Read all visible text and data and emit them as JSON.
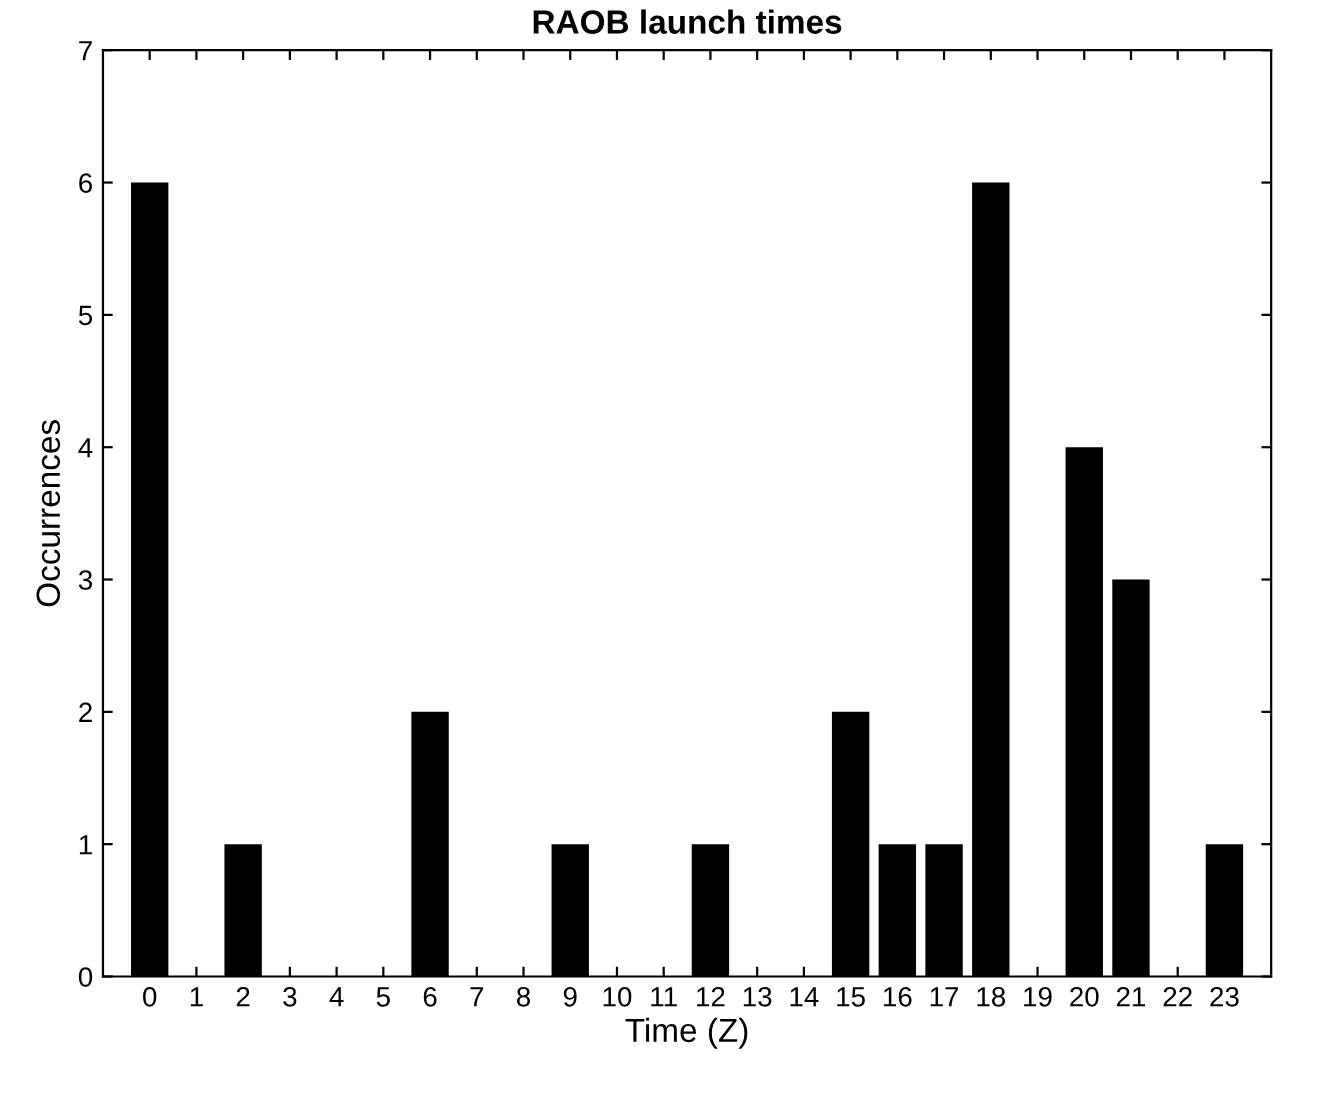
{
  "chart_data": {
    "type": "bar",
    "title": "RAOB launch times",
    "xlabel": "Time (Z)",
    "ylabel": "Occurrences",
    "categories": [
      "0",
      "1",
      "2",
      "3",
      "4",
      "5",
      "6",
      "7",
      "8",
      "9",
      "10",
      "11",
      "12",
      "13",
      "14",
      "15",
      "16",
      "17",
      "18",
      "19",
      "20",
      "21",
      "22",
      "23"
    ],
    "values": [
      6,
      0,
      1,
      0,
      0,
      0,
      2,
      0,
      0,
      1,
      0,
      0,
      1,
      0,
      0,
      2,
      1,
      1,
      6,
      0,
      4,
      3,
      0,
      1
    ],
    "color": "#000000",
    "ylim": [
      0,
      7
    ],
    "yticks": [
      0,
      1,
      2,
      3,
      4,
      5,
      6,
      7
    ],
    "grid": false,
    "legend": false
  }
}
